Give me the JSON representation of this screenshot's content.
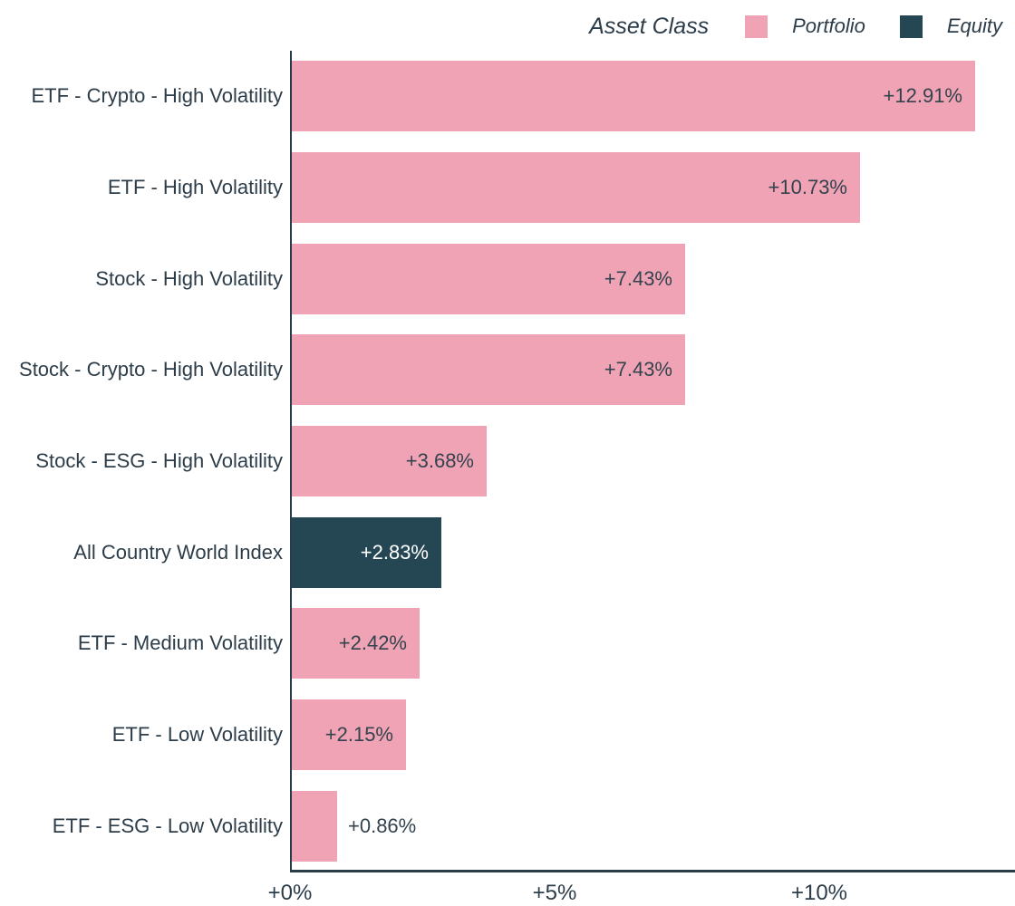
{
  "legend": {
    "title": "Asset Class",
    "items": [
      {
        "label": "Portfolio",
        "series": "Portfolio",
        "color": "#f0a3b5"
      },
      {
        "label": "Equity",
        "series": "Equity",
        "color": "#254753"
      }
    ]
  },
  "chart_data": {
    "type": "bar",
    "orientation": "horizontal",
    "legend_title": "Asset Class",
    "legend_position": "top-right",
    "grid": false,
    "xlabel": "",
    "ylabel": "",
    "unit": "percent",
    "categories": [
      "ETF - Crypto - High Volatility",
      "ETF - High Volatility",
      "Stock - High Volatility",
      "Stock - Crypto - High Volatility",
      "Stock - ESG - High Volatility",
      "All Country World Index",
      "ETF - Medium Volatility",
      "ETF - Low Volatility",
      "ETF - ESG - Low Volatility"
    ],
    "values": [
      12.91,
      10.73,
      7.43,
      7.43,
      3.68,
      2.83,
      2.42,
      2.15,
      0.86
    ],
    "value_labels": [
      "+12.91%",
      "+10.73%",
      "+7.43%",
      "+7.43%",
      "+3.68%",
      "+2.83%",
      "+2.42%",
      "+2.15%",
      "+0.86%"
    ],
    "point_series": [
      "Portfolio",
      "Portfolio",
      "Portfolio",
      "Portfolio",
      "Portfolio",
      "Equity",
      "Portfolio",
      "Portfolio",
      "Portfolio"
    ],
    "x_ticks": [
      {
        "value": 0,
        "label": "+0%"
      },
      {
        "value": 5,
        "label": "+5%"
      },
      {
        "value": 10,
        "label": "+10%"
      }
    ],
    "xlim": [
      0,
      13.7
    ]
  },
  "colors": {
    "portfolio": "#f0a3b5",
    "equity": "#254753",
    "axis": "#2a3c48",
    "text": "#2c3d49",
    "value_text": "#33434e",
    "value_text_on_equity": "#ffffff",
    "background": "#ffffff"
  }
}
